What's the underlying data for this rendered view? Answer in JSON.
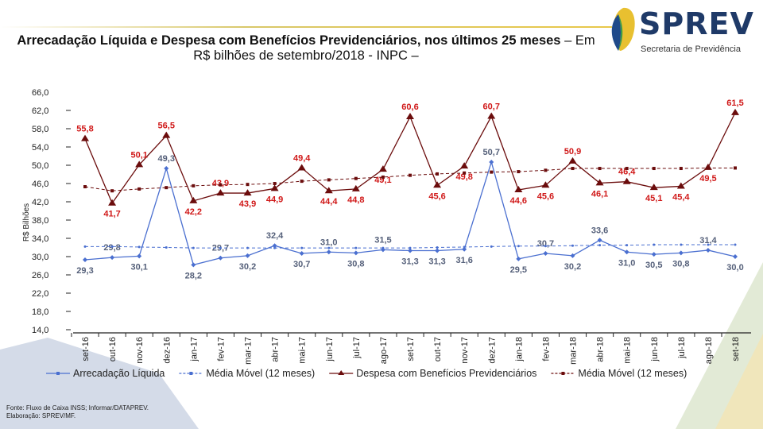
{
  "header": {
    "title_bold": "Arrecadação Líquida e Despesa com Benefícios Previdenciários, nos últimos 25 meses",
    "title_rest": " – Em R$ bilhões de setembro/2018 - INPC –",
    "logo_text": "SPREV",
    "logo_subtitle": "Secretaria de Previdência"
  },
  "chart_data": {
    "type": "line",
    "title": "",
    "ylabel": "R$ Bilhões",
    "xlabel": "",
    "ylim": [
      14,
      66
    ],
    "yticks": [
      "66,0",
      "62,0",
      "58,0",
      "54,0",
      "50,0",
      "46,0",
      "42,0",
      "38,0",
      "34,0",
      "30,0",
      "26,0",
      "22,0",
      "18,0",
      "14,0"
    ],
    "grid": false,
    "legend_position": "bottom",
    "categories": [
      "set-16",
      "out-16",
      "nov-16",
      "dez-16",
      "jan-17",
      "fev-17",
      "mar-17",
      "abr-17",
      "mai-17",
      "jun-17",
      "jul-17",
      "ago-17",
      "set-17",
      "out-17",
      "nov-17",
      "dez-17",
      "jan-18",
      "fev-18",
      "mar-18",
      "abr-18",
      "mai-18",
      "jun-18",
      "jul-18",
      "ago-18",
      "set-18"
    ],
    "series": [
      {
        "name": "Arrecadação Líquida",
        "color": "#4a6fd0",
        "style": "solid",
        "marker": "diamond",
        "labeled": true,
        "values": [
          29.3,
          29.8,
          30.1,
          49.3,
          28.2,
          29.7,
          30.2,
          32.4,
          30.7,
          31.0,
          30.8,
          31.5,
          31.3,
          31.3,
          31.6,
          50.7,
          29.5,
          30.7,
          30.2,
          33.6,
          31.0,
          30.5,
          30.8,
          31.4,
          30.0
        ]
      },
      {
        "name": "Média Móvel (12 meses)",
        "color": "#4a6fd0",
        "style": "dashed",
        "marker": "dot",
        "labeled": false,
        "values": [
          32.2,
          32.2,
          32.1,
          32.0,
          31.9,
          31.9,
          31.9,
          31.9,
          31.9,
          31.9,
          31.9,
          31.9,
          31.9,
          32.0,
          32.1,
          32.2,
          32.3,
          32.3,
          32.4,
          32.5,
          32.5,
          32.6,
          32.6,
          32.6,
          32.6
        ]
      },
      {
        "name": "Despesa com Benefícios Previdenciários",
        "color": "#6b0c0c",
        "style": "solid",
        "marker": "triangle",
        "labeled": true,
        "values": [
          55.8,
          41.7,
          50.1,
          56.5,
          42.2,
          43.9,
          43.9,
          44.9,
          49.4,
          44.4,
          44.8,
          49.1,
          60.6,
          45.6,
          49.8,
          60.7,
          44.6,
          45.6,
          50.9,
          46.1,
          46.4,
          45.1,
          45.4,
          49.5,
          61.5
        ]
      },
      {
        "name": "Média Móvel (12 meses)",
        "color": "#6b0c0c",
        "style": "dashed",
        "marker": "square",
        "labeled": false,
        "values": [
          45.3,
          44.4,
          44.8,
          45.1,
          45.5,
          45.7,
          45.8,
          46.0,
          46.5,
          46.8,
          47.1,
          47.4,
          47.8,
          48.1,
          48.3,
          48.5,
          48.6,
          48.9,
          49.3,
          49.3,
          49.3,
          49.3,
          49.3,
          49.4,
          49.4
        ]
      }
    ],
    "label_colors": {
      "arrecadacao": "#55607a",
      "despesa": "#d01818"
    }
  },
  "footer": {
    "source": "Fonte: Fluxo de Caixa INSS; Informar/DATAPREV.",
    "credit": "Elaboração: SPREV/MF."
  }
}
